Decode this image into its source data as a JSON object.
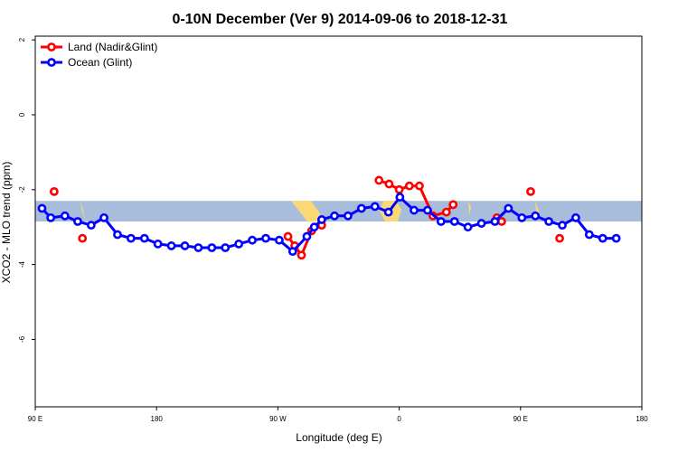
{
  "chart_data": {
    "type": "line",
    "title": "0-10N December (Ver 9)   2014-09-06 to 2018-12-31",
    "xlabel": "Longitude (deg E)",
    "ylabel": "XCO2 - MLO trend (ppm)",
    "xlim": [
      90,
      540
    ],
    "ylim": [
      -7.8,
      2.1
    ],
    "x_ticks": [
      {
        "value": 90,
        "label": "90 E"
      },
      {
        "value": 180,
        "label": "180"
      },
      {
        "value": 270,
        "label": "90 W"
      },
      {
        "value": 360,
        "label": "0"
      },
      {
        "value": 450,
        "label": "90 E"
      },
      {
        "value": 540,
        "label": "180"
      }
    ],
    "y_ticks": [
      {
        "value": 2,
        "label": "2"
      },
      {
        "value": 0,
        "label": "0"
      },
      {
        "value": -2,
        "label": "-2"
      },
      {
        "value": -4,
        "label": "-4"
      },
      {
        "value": -6,
        "label": "-6"
      }
    ],
    "grid": false,
    "legend_position": "top-left",
    "background_band": {
      "y_range": [
        -2.85,
        -2.3
      ],
      "ocean_color": "#a7bddb",
      "land_color": "#fbd876"
    },
    "series": [
      {
        "name": "Land (Nadir&Glint)",
        "color": "#ff0000",
        "segments": [
          [
            [
              104,
              -2.05
            ]
          ],
          [
            [
              125,
              -3.3
            ]
          ],
          [
            [
              277.5,
              -3.25
            ],
            [
              282.5,
              -3.5
            ],
            [
              287.5,
              -3.75
            ],
            [
              295,
              -3.1
            ],
            [
              302.5,
              -2.95
            ]
          ],
          [
            [
              345,
              -1.75
            ],
            [
              352.5,
              -1.85
            ],
            [
              360,
              -2.0
            ],
            [
              367.5,
              -1.9
            ],
            [
              375,
              -1.9
            ],
            [
              385,
              -2.7
            ],
            [
              395,
              -2.6
            ],
            [
              400,
              -2.4
            ]
          ],
          [
            [
              432.5,
              -2.75
            ],
            [
              436,
              -2.85
            ]
          ],
          [
            [
              457.5,
              -2.05
            ]
          ],
          [
            [
              479,
              -3.3
            ]
          ]
        ]
      },
      {
        "name": "Ocean (Glint)",
        "color": "#0000ff",
        "points": [
          [
            95,
            -2.5
          ],
          [
            101.5,
            -2.75
          ],
          [
            112,
            -2.7
          ],
          [
            121.5,
            -2.85
          ],
          [
            131.5,
            -2.95
          ],
          [
            141,
            -2.75
          ],
          [
            151,
            -3.2
          ],
          [
            161,
            -3.3
          ],
          [
            171,
            -3.3
          ],
          [
            181,
            -3.45
          ],
          [
            191,
            -3.5
          ],
          [
            201,
            -3.5
          ],
          [
            211,
            -3.55
          ],
          [
            221,
            -3.55
          ],
          [
            231,
            -3.55
          ],
          [
            241,
            -3.45
          ],
          [
            251,
            -3.35
          ],
          [
            261,
            -3.3
          ],
          [
            271,
            -3.35
          ],
          [
            281,
            -3.65
          ],
          [
            291.5,
            -3.25
          ],
          [
            297,
            -3.0
          ],
          [
            302.5,
            -2.8
          ],
          [
            312,
            -2.7
          ],
          [
            322,
            -2.7
          ],
          [
            332,
            -2.5
          ],
          [
            342,
            -2.45
          ],
          [
            352,
            -2.6
          ],
          [
            360.5,
            -2.2
          ],
          [
            371,
            -2.55
          ],
          [
            381,
            -2.55
          ],
          [
            391,
            -2.85
          ],
          [
            401,
            -2.85
          ],
          [
            411,
            -3.0
          ],
          [
            421,
            -2.9
          ],
          [
            431,
            -2.85
          ],
          [
            441,
            -2.5
          ],
          [
            451,
            -2.75
          ],
          [
            461,
            -2.7
          ],
          [
            471,
            -2.85
          ],
          [
            481,
            -2.95
          ],
          [
            491,
            -2.75
          ],
          [
            501,
            -3.2
          ],
          [
            511,
            -3.3
          ],
          [
            521,
            -3.3
          ]
        ]
      }
    ]
  }
}
